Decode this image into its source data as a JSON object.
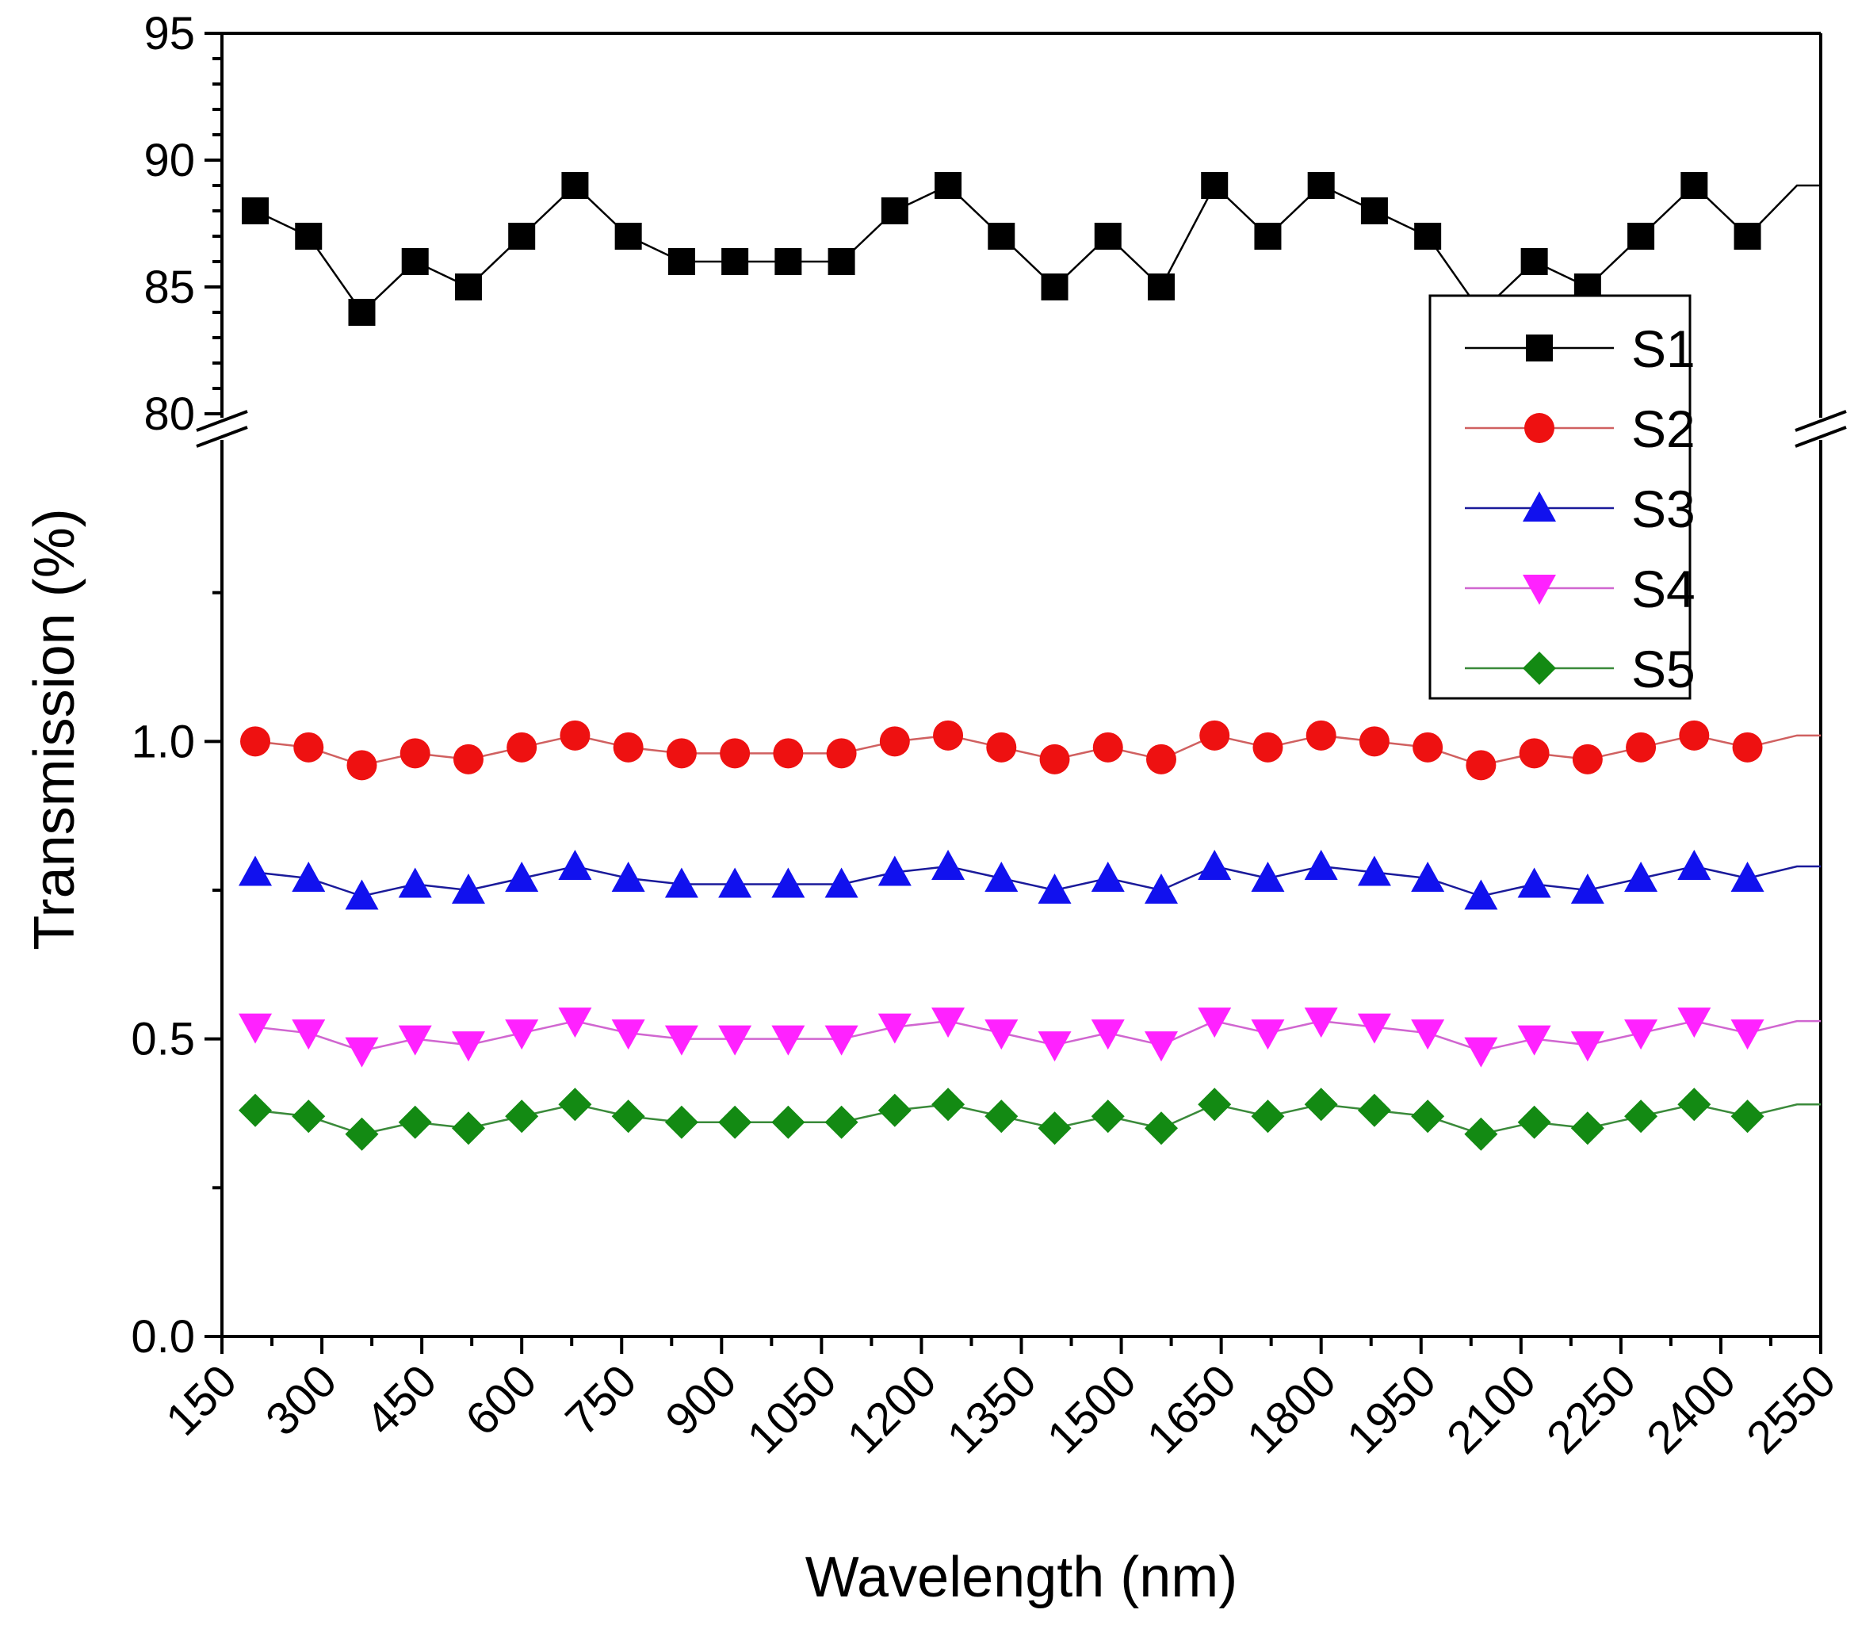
{
  "chart_data": {
    "type": "line",
    "xlabel": "Wavelength (nm)",
    "ylabel": "Transmission (%)",
    "xlim": [
      150,
      2550
    ],
    "x_ticks": [
      "150",
      "300",
      "450",
      "600",
      "750",
      "900",
      "1050",
      "1200",
      "1350",
      "1500",
      "1650",
      "1800",
      "1950",
      "2100",
      "2250",
      "2400",
      "2550"
    ],
    "y_axis_break": true,
    "upper_ylim": [
      80,
      95
    ],
    "upper_y_ticks": [
      "80",
      "85",
      "90",
      "95"
    ],
    "lower_ylim": [
      0.0,
      1.5
    ],
    "lower_y_ticks": [
      "0.0",
      "0.5",
      "1.0"
    ],
    "legend_position": "top-right",
    "grid": false,
    "x": [
      200,
      280,
      360,
      440,
      520,
      600,
      680,
      760,
      840,
      920,
      1000,
      1080,
      1160,
      1240,
      1320,
      1400,
      1480,
      1560,
      1640,
      1720,
      1800,
      1880,
      1960,
      2040,
      2120,
      2200,
      2280,
      2360,
      2440
    ],
    "series": [
      {
        "name": "S1",
        "panel": "upper",
        "marker": "square",
        "line_color": "#000000",
        "marker_color": "#000000",
        "values": [
          88,
          87,
          84,
          86,
          85,
          87,
          89,
          87,
          86,
          86,
          86,
          86,
          88,
          89,
          87,
          85,
          87,
          85,
          89,
          87,
          89,
          88,
          87,
          84,
          86,
          85,
          87,
          89,
          87
        ],
        "tail_value": 89
      },
      {
        "name": "S2",
        "panel": "lower",
        "marker": "circle",
        "line_color": "#d06060",
        "marker_color": "#ee1111",
        "values": [
          1.0,
          0.99,
          0.96,
          0.98,
          0.97,
          0.99,
          1.01,
          0.99,
          0.98,
          0.98,
          0.98,
          0.98,
          1.0,
          1.01,
          0.99,
          0.97,
          0.99,
          0.97,
          1.01,
          0.99,
          1.01,
          1.0,
          0.99,
          0.96,
          0.98,
          0.97,
          0.99,
          1.01,
          0.99
        ],
        "tail_value": 1.01
      },
      {
        "name": "S3",
        "panel": "lower",
        "marker": "triangle-up",
        "line_color": "#1a1a9a",
        "marker_color": "#1111ee",
        "values": [
          0.78,
          0.77,
          0.74,
          0.76,
          0.75,
          0.77,
          0.79,
          0.77,
          0.76,
          0.76,
          0.76,
          0.76,
          0.78,
          0.79,
          0.77,
          0.75,
          0.77,
          0.75,
          0.79,
          0.77,
          0.79,
          0.78,
          0.77,
          0.74,
          0.76,
          0.75,
          0.77,
          0.79,
          0.77
        ],
        "tail_value": 0.79
      },
      {
        "name": "S4",
        "panel": "lower",
        "marker": "triangle-down",
        "line_color": "#d066d0",
        "marker_color": "#ff22ff",
        "values": [
          0.52,
          0.51,
          0.48,
          0.5,
          0.49,
          0.51,
          0.53,
          0.51,
          0.5,
          0.5,
          0.5,
          0.5,
          0.52,
          0.53,
          0.51,
          0.49,
          0.51,
          0.49,
          0.53,
          0.51,
          0.53,
          0.52,
          0.51,
          0.48,
          0.5,
          0.49,
          0.51,
          0.53,
          0.51
        ],
        "tail_value": 0.53
      },
      {
        "name": "S5",
        "panel": "lower",
        "marker": "diamond",
        "line_color": "#3a8a3a",
        "marker_color": "#138a13",
        "values": [
          0.38,
          0.37,
          0.34,
          0.36,
          0.35,
          0.37,
          0.39,
          0.37,
          0.36,
          0.36,
          0.36,
          0.36,
          0.38,
          0.39,
          0.37,
          0.35,
          0.37,
          0.35,
          0.39,
          0.37,
          0.39,
          0.38,
          0.37,
          0.34,
          0.36,
          0.35,
          0.37,
          0.39,
          0.37
        ],
        "tail_value": 0.39
      }
    ]
  }
}
